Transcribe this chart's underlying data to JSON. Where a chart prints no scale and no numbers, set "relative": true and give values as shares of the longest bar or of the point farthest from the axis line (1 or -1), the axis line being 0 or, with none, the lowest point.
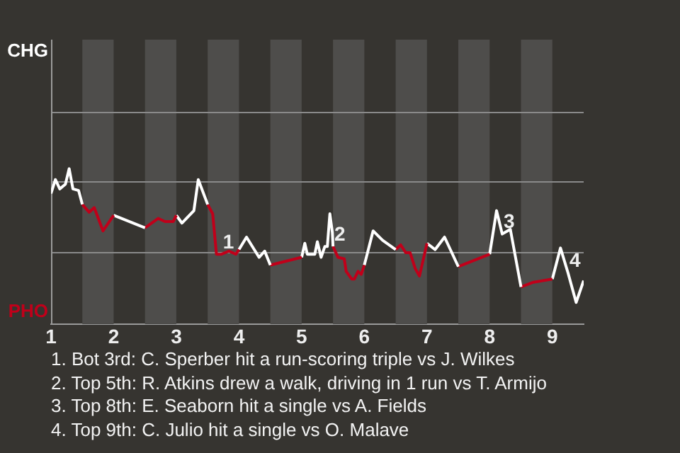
{
  "chart_data": {
    "type": "line",
    "relative": true,
    "xlim": [
      1,
      9.5
    ],
    "xticks": [
      1,
      2,
      3,
      4,
      5,
      6,
      7,
      8,
      9
    ],
    "legend": false,
    "marker": "none",
    "line_style": "solid",
    "series": [
      {
        "name": "CHG",
        "color": "#ffffff",
        "x": [
          1.0,
          1.07,
          1.14,
          1.23,
          1.29,
          1.35,
          1.44,
          1.5
        ],
        "values": [
          0.84,
          0.93,
          0.87,
          0.9,
          1,
          0.87,
          0.86,
          0.77
        ]
      },
      {
        "name": "PHO",
        "color": "#c0001a",
        "x": [
          1.5,
          1.61,
          1.69,
          1.83,
          2.0
        ],
        "values": [
          0.77,
          0.72,
          0.75,
          0.6,
          0.7
        ]
      },
      {
        "color": "#ffffff",
        "x": [
          2.0,
          2.5
        ],
        "values": [
          0.7,
          0.62
        ]
      },
      {
        "color": "#c0001a",
        "x": [
          2.5,
          2.71,
          2.82,
          2.95,
          3.0
        ],
        "values": [
          0.62,
          0.68,
          0.66,
          0.66,
          0.7
        ]
      },
      {
        "color": "#ffffff",
        "x": [
          3.0,
          3.09,
          3.28,
          3.35,
          3.5
        ],
        "values": [
          0.7,
          0.65,
          0.73,
          0.93,
          0.77
        ]
      },
      {
        "color": "#c0001a",
        "x": [
          3.5,
          3.58,
          3.64,
          3.72,
          3.84,
          3.95,
          4.0
        ],
        "values": [
          0.77,
          0.71,
          0.45,
          0.45,
          0.47,
          0.45,
          0.48
        ]
      },
      {
        "color": "#ffffff",
        "x": [
          4.0,
          4.12,
          4.32,
          4.41,
          4.5
        ],
        "values": [
          0.48,
          0.56,
          0.43,
          0.47,
          0.38
        ]
      },
      {
        "color": "#c0001a",
        "x": [
          4.5,
          5.0
        ],
        "values": [
          0.38,
          0.43
        ]
      },
      {
        "color": "#ffffff",
        "x": [
          5.0,
          5.05,
          5.09,
          5.21,
          5.25,
          5.31,
          5.37,
          5.41,
          5.45,
          5.49,
          5.5
        ],
        "values": [
          0.43,
          0.52,
          0.45,
          0.45,
          0.53,
          0.43,
          0.5,
          0.5,
          0.71,
          0.59,
          0.5
        ]
      },
      {
        "color": "#c0001a",
        "x": [
          5.5,
          5.58,
          5.68,
          5.71,
          5.8,
          5.84,
          5.9,
          5.95,
          6.0
        ],
        "values": [
          0.5,
          0.43,
          0.42,
          0.34,
          0.29,
          0.29,
          0.34,
          0.32,
          0.38
        ]
      },
      {
        "color": "#ffffff",
        "x": [
          6.0,
          6.14,
          6.29,
          6.5
        ],
        "values": [
          0.38,
          0.6,
          0.54,
          0.48
        ]
      },
      {
        "color": "#c0001a",
        "x": [
          6.5,
          6.58,
          6.66,
          6.73,
          6.81,
          6.88,
          7.0
        ],
        "values": [
          0.48,
          0.51,
          0.46,
          0.46,
          0.36,
          0.31,
          0.52
        ]
      },
      {
        "color": "#ffffff",
        "x": [
          7.0,
          7.13,
          7.28,
          7.5
        ],
        "values": [
          0.52,
          0.48,
          0.56,
          0.37
        ]
      },
      {
        "color": "#c0001a",
        "x": [
          7.5,
          8.0
        ],
        "values": [
          0.37,
          0.45
        ]
      },
      {
        "color": "#ffffff",
        "x": [
          8.0,
          8.11,
          8.2,
          8.33,
          8.5
        ],
        "values": [
          0.45,
          0.73,
          0.58,
          0.61,
          0.24
        ]
      },
      {
        "color": "#c0001a",
        "x": [
          8.5,
          8.7,
          9.0
        ],
        "values": [
          0.24,
          0.27,
          0.29
        ]
      },
      {
        "color": "#ffffff",
        "x": [
          9.0,
          9.13,
          9.25,
          9.38,
          9.5
        ],
        "values": [
          0.29,
          0.49,
          0.33,
          0.14,
          0.28
        ]
      }
    ],
    "ref_lines": [
      {
        "axis": "y",
        "value": 0.46,
        "color": "#8a8a8a"
      },
      {
        "axis": "y",
        "value": 0.92,
        "color": "#8a8a8a"
      },
      {
        "axis": "y",
        "value": 1.37,
        "color": "#8a8a8a"
      }
    ],
    "bands": [
      {
        "axis": "x",
        "from": 1.5,
        "to": 2,
        "color": "#4e4d4b"
      },
      {
        "axis": "x",
        "from": 2.5,
        "to": 3,
        "color": "#4e4d4b"
      },
      {
        "axis": "x",
        "from": 3.5,
        "to": 4,
        "color": "#4e4d4b"
      },
      {
        "axis": "x",
        "from": 4.5,
        "to": 5,
        "color": "#4e4d4b"
      },
      {
        "axis": "x",
        "from": 5.5,
        "to": 6,
        "color": "#4e4d4b"
      },
      {
        "axis": "x",
        "from": 6.5,
        "to": 7,
        "color": "#4e4d4b"
      },
      {
        "axis": "x",
        "from": 7.5,
        "to": 8,
        "color": "#4e4d4b"
      },
      {
        "axis": "x",
        "from": 8.5,
        "to": 9,
        "color": "#4e4d4b"
      }
    ],
    "annotations": [
      {
        "text": "1",
        "x": 3.72,
        "y": 0.45
      },
      {
        "text": "2",
        "x": 5.5,
        "y": 0.5
      },
      {
        "text": "3",
        "x": 8.2,
        "y": 0.58
      },
      {
        "text": "4",
        "x": 9.25,
        "y": 0.33
      },
      "1. Bot 3rd: C. Sperber hit a run-scoring triple vs J. Wilkes",
      "2. Top 5th: R. Atkins drew a walk, driving in 1 run vs T. Armijo",
      "3. Top 8th: E. Seaborn hit a single vs A. Fields",
      "4. Top 9th: C. Julio hit a single vs O. Malave"
    ]
  }
}
